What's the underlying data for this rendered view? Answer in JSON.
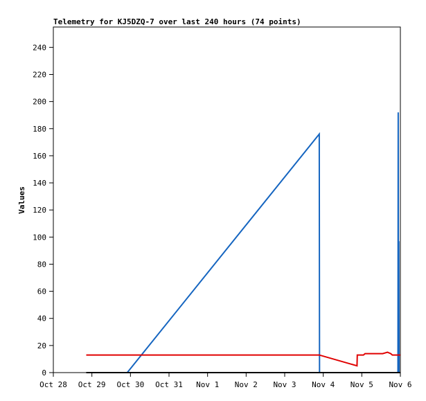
{
  "chart_data": {
    "type": "line",
    "title": "Telemetry for KJ5DZQ-7 over last 240 hours (74 points)",
    "xlabel": "",
    "ylabel": "Values",
    "x_ticks": [
      "Oct 28",
      "Oct 29",
      "Oct 30",
      "Oct 31",
      "Nov 1",
      "Nov 2",
      "Nov 3",
      "Nov 4",
      "Nov 5",
      "Nov 6"
    ],
    "xlim": [
      "2024-10-28T00:00",
      "2024-11-06T00:00"
    ],
    "ylim": [
      0,
      255
    ],
    "y_ticks": [
      0,
      20,
      40,
      60,
      80,
      100,
      120,
      140,
      160,
      180,
      200,
      220,
      240
    ],
    "grid": false,
    "series": [
      {
        "color": "#1565c0",
        "points": [
          [
            "2024-10-29T22:00",
            0
          ],
          [
            "2024-11-03T21:30",
            176
          ],
          [
            "2024-11-03T21:40",
            0
          ],
          [
            "2024-11-05T22:30",
            0
          ],
          [
            "2024-11-05T22:40",
            192
          ],
          [
            "2024-11-05T22:50",
            0
          ],
          [
            "2024-11-05T23:00",
            97
          ],
          [
            "2024-11-05T23:10",
            0
          ]
        ]
      },
      {
        "color": "#e00000",
        "points": [
          [
            "2024-10-28T20:30",
            13
          ],
          [
            "2024-11-03T21:30",
            13
          ],
          [
            "2024-11-04T21:00",
            5
          ],
          [
            "2024-11-04T21:10",
            13
          ],
          [
            "2024-11-05T01:00",
            13
          ],
          [
            "2024-11-05T02:00",
            14
          ],
          [
            "2024-11-05T13:00",
            14
          ],
          [
            "2024-11-05T16:00",
            15
          ],
          [
            "2024-11-05T18:00",
            14
          ],
          [
            "2024-11-05T19:00",
            13
          ],
          [
            "2024-11-06T00:00",
            13
          ]
        ]
      },
      {
        "color": "#000000",
        "points": [
          [
            "2024-10-28T20:30",
            0
          ],
          [
            "2024-11-06T00:00",
            0
          ]
        ]
      }
    ]
  }
}
